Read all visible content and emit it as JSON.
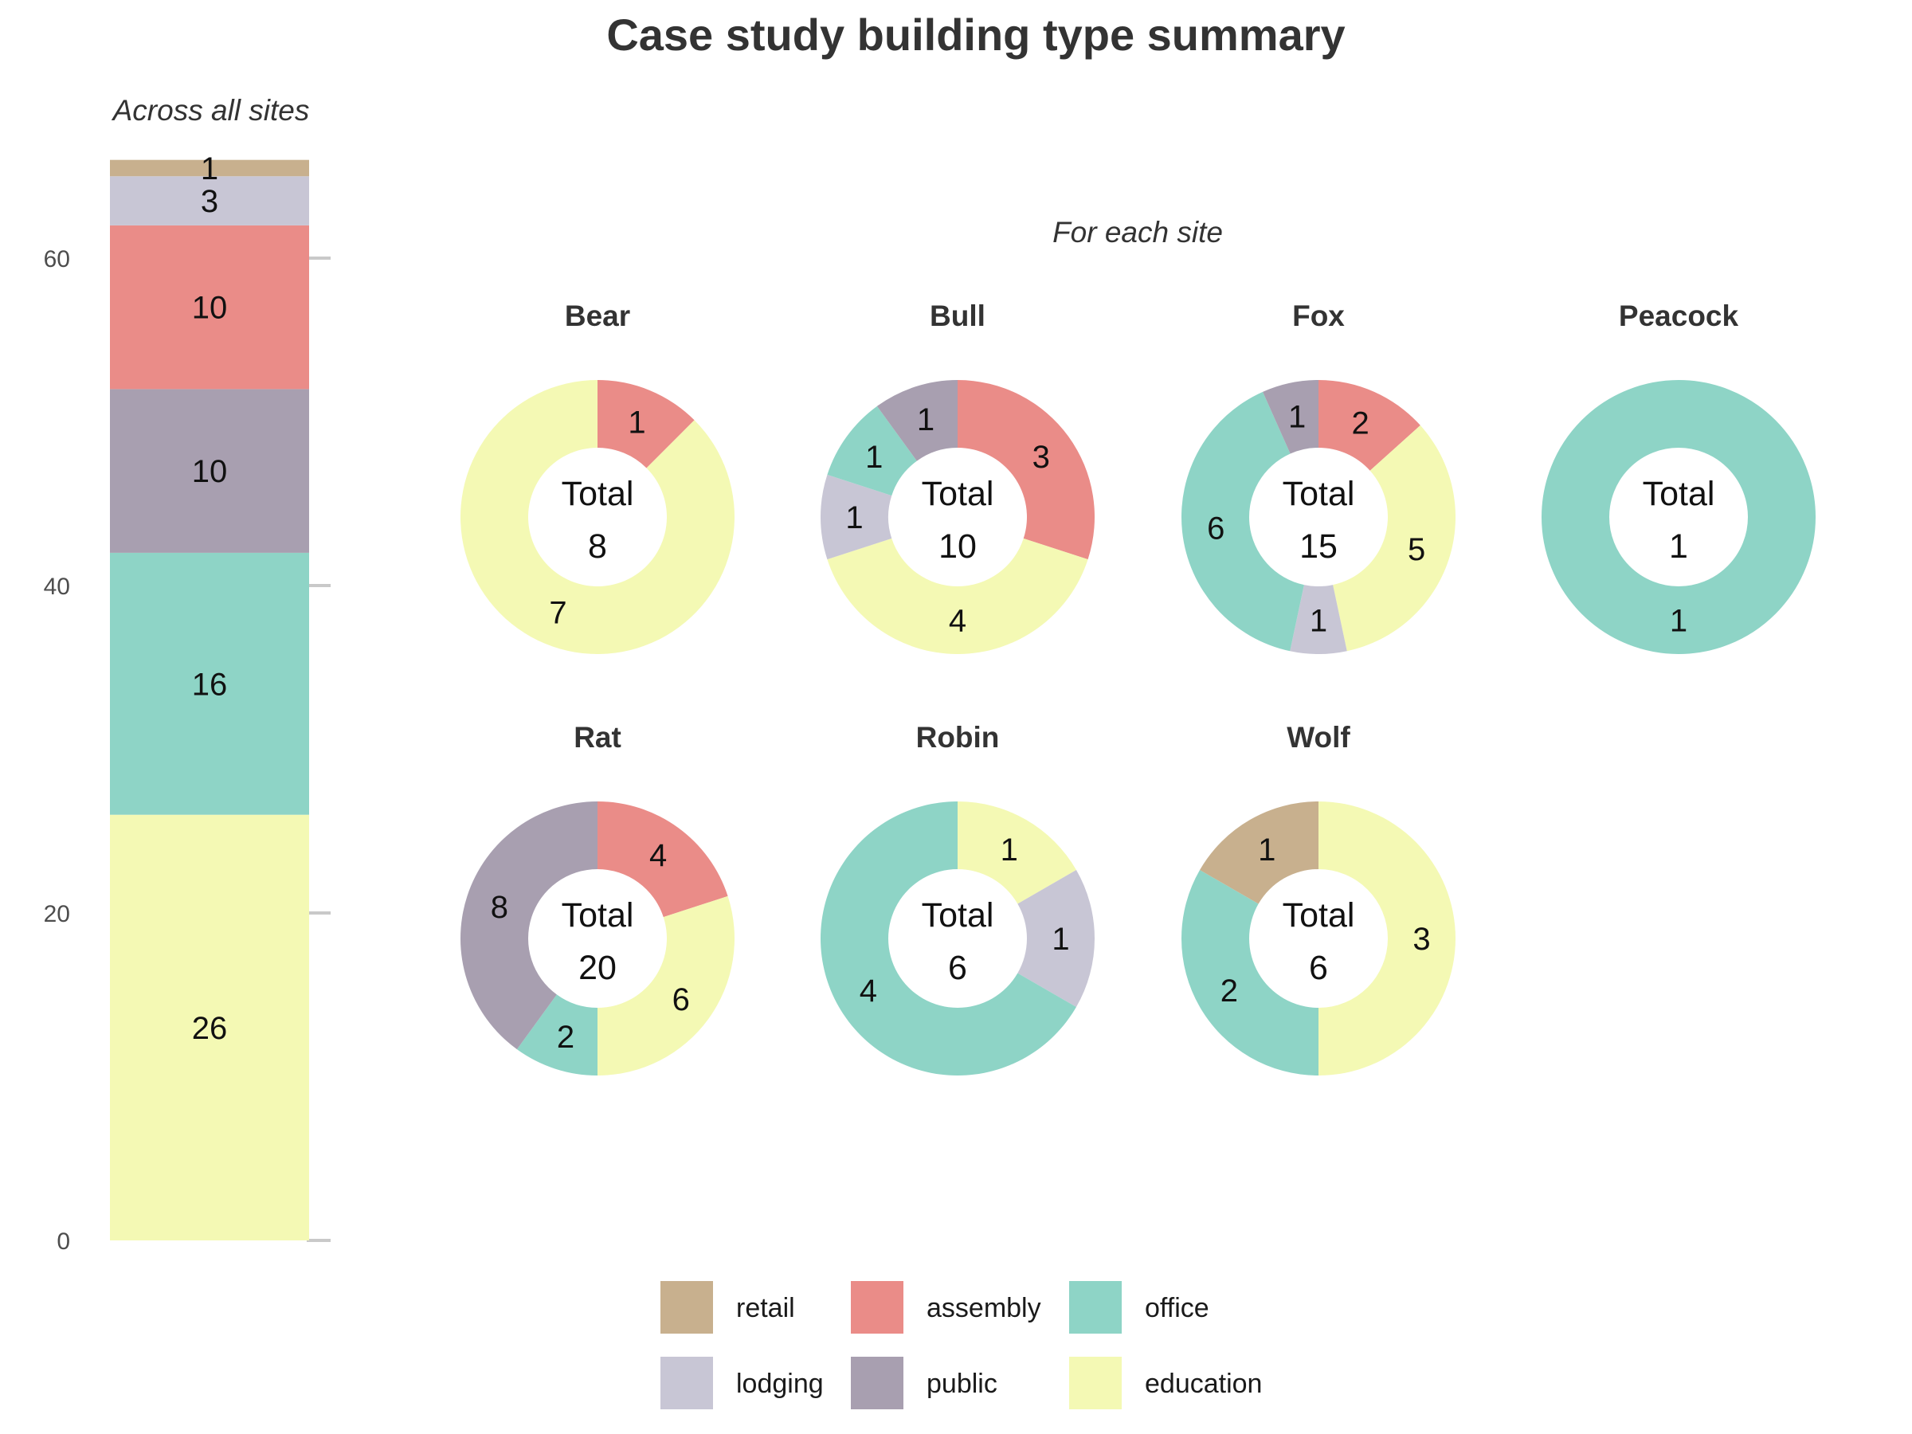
{
  "chart_data": {
    "title": "Case study building type summary",
    "categories": [
      "retail",
      "assembly",
      "office",
      "lodging",
      "public",
      "education"
    ],
    "colors": {
      "retail": "#c8b08e",
      "assembly": "#ea8c88",
      "office": "#8ed4c6",
      "lodging": "#c8c6d5",
      "public": "#a89fb0",
      "education": "#f4f9b4"
    },
    "overall": {
      "type": "bar",
      "subtitle": "Across all sites",
      "stack_order_bottom_to_top": [
        "education",
        "office",
        "public",
        "assembly",
        "lodging",
        "retail"
      ],
      "values": {
        "education": 26,
        "office": 16,
        "public": 10,
        "assembly": 10,
        "lodging": 3,
        "retail": 1
      },
      "y_ticks": [
        0,
        20,
        40,
        60
      ],
      "ylim": [
        0,
        66
      ]
    },
    "per_site": {
      "type": "pie",
      "subtitle": "For each site",
      "total_label": "Total",
      "sites": [
        {
          "name": "Bear",
          "total": 8,
          "slices": [
            {
              "category": "assembly",
              "value": 1
            },
            {
              "category": "education",
              "value": 7
            }
          ]
        },
        {
          "name": "Bull",
          "total": 10,
          "slices": [
            {
              "category": "assembly",
              "value": 3
            },
            {
              "category": "education",
              "value": 4
            },
            {
              "category": "lodging",
              "value": 1
            },
            {
              "category": "office",
              "value": 1
            },
            {
              "category": "public",
              "value": 1
            }
          ]
        },
        {
          "name": "Fox",
          "total": 15,
          "slices": [
            {
              "category": "assembly",
              "value": 2
            },
            {
              "category": "education",
              "value": 5
            },
            {
              "category": "lodging",
              "value": 1
            },
            {
              "category": "office",
              "value": 6
            },
            {
              "category": "public",
              "value": 1
            }
          ]
        },
        {
          "name": "Peacock",
          "total": 1,
          "slices": [
            {
              "category": "office",
              "value": 1
            }
          ]
        },
        {
          "name": "Rat",
          "total": 20,
          "slices": [
            {
              "category": "assembly",
              "value": 4
            },
            {
              "category": "education",
              "value": 6
            },
            {
              "category": "office",
              "value": 2
            },
            {
              "category": "public",
              "value": 8
            }
          ]
        },
        {
          "name": "Robin",
          "total": 6,
          "slices": [
            {
              "category": "education",
              "value": 1
            },
            {
              "category": "lodging",
              "value": 1
            },
            {
              "category": "office",
              "value": 4
            }
          ]
        },
        {
          "name": "Wolf",
          "total": 6,
          "slices": [
            {
              "category": "education",
              "value": 3
            },
            {
              "category": "office",
              "value": 2
            },
            {
              "category": "retail",
              "value": 1
            }
          ]
        }
      ]
    },
    "legend": {
      "position": "bottom",
      "rows": [
        [
          "retail",
          "assembly",
          "office"
        ],
        [
          "lodging",
          "public",
          "education"
        ]
      ]
    }
  }
}
